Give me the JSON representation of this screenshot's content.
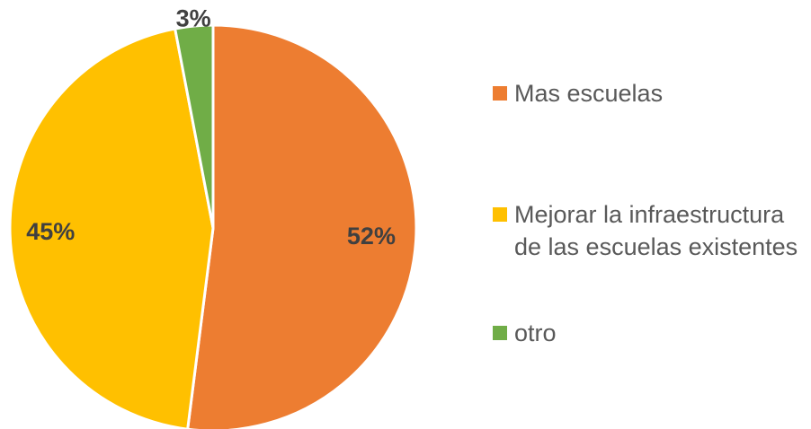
{
  "chart_data": {
    "type": "pie",
    "categories": [
      "Mas escuelas",
      "Mejorar la infraestructura de las escuelas existentes",
      "otro"
    ],
    "values": [
      52,
      45,
      3
    ],
    "value_labels": [
      "52%",
      "45%",
      "3%"
    ],
    "colors": [
      "#ED7D31",
      "#FFC000",
      "#70AD47"
    ],
    "legend": "right"
  }
}
